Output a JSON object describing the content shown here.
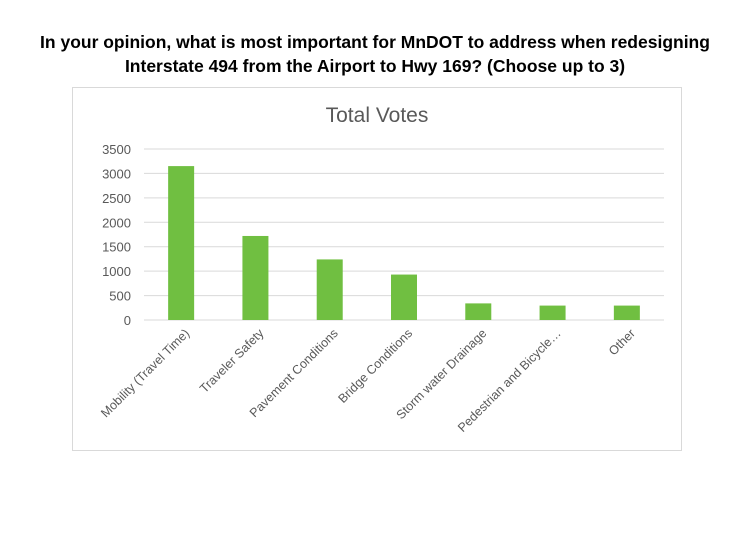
{
  "page": {
    "question_line1": "In your opinion, what is most important for MnDOT to address when redesigning",
    "question_line2": "Interstate 494 from the Airport to Hwy 169? (Choose up to 3)"
  },
  "colors": {
    "bar": "#70bf41",
    "grid": "#d9d9d9",
    "text": "#595959",
    "axis_line": "#d9d9d9"
  },
  "chart_data": {
    "type": "bar",
    "title": "Total Votes",
    "xlabel": "",
    "ylabel": "",
    "ylim": [
      0,
      3500
    ],
    "yticks": [
      0,
      500,
      1000,
      1500,
      2000,
      2500,
      3000,
      3500
    ],
    "grid": true,
    "legend": "none",
    "categories": [
      "Mobility (Travel Time)",
      "Traveler Safety",
      "Pavement Conditions",
      "Bridge Conditions",
      "Storm water Drainage",
      "Pedestrian and Bicycle…",
      "Other"
    ],
    "values": [
      3150,
      1720,
      1240,
      930,
      340,
      295,
      295
    ]
  }
}
